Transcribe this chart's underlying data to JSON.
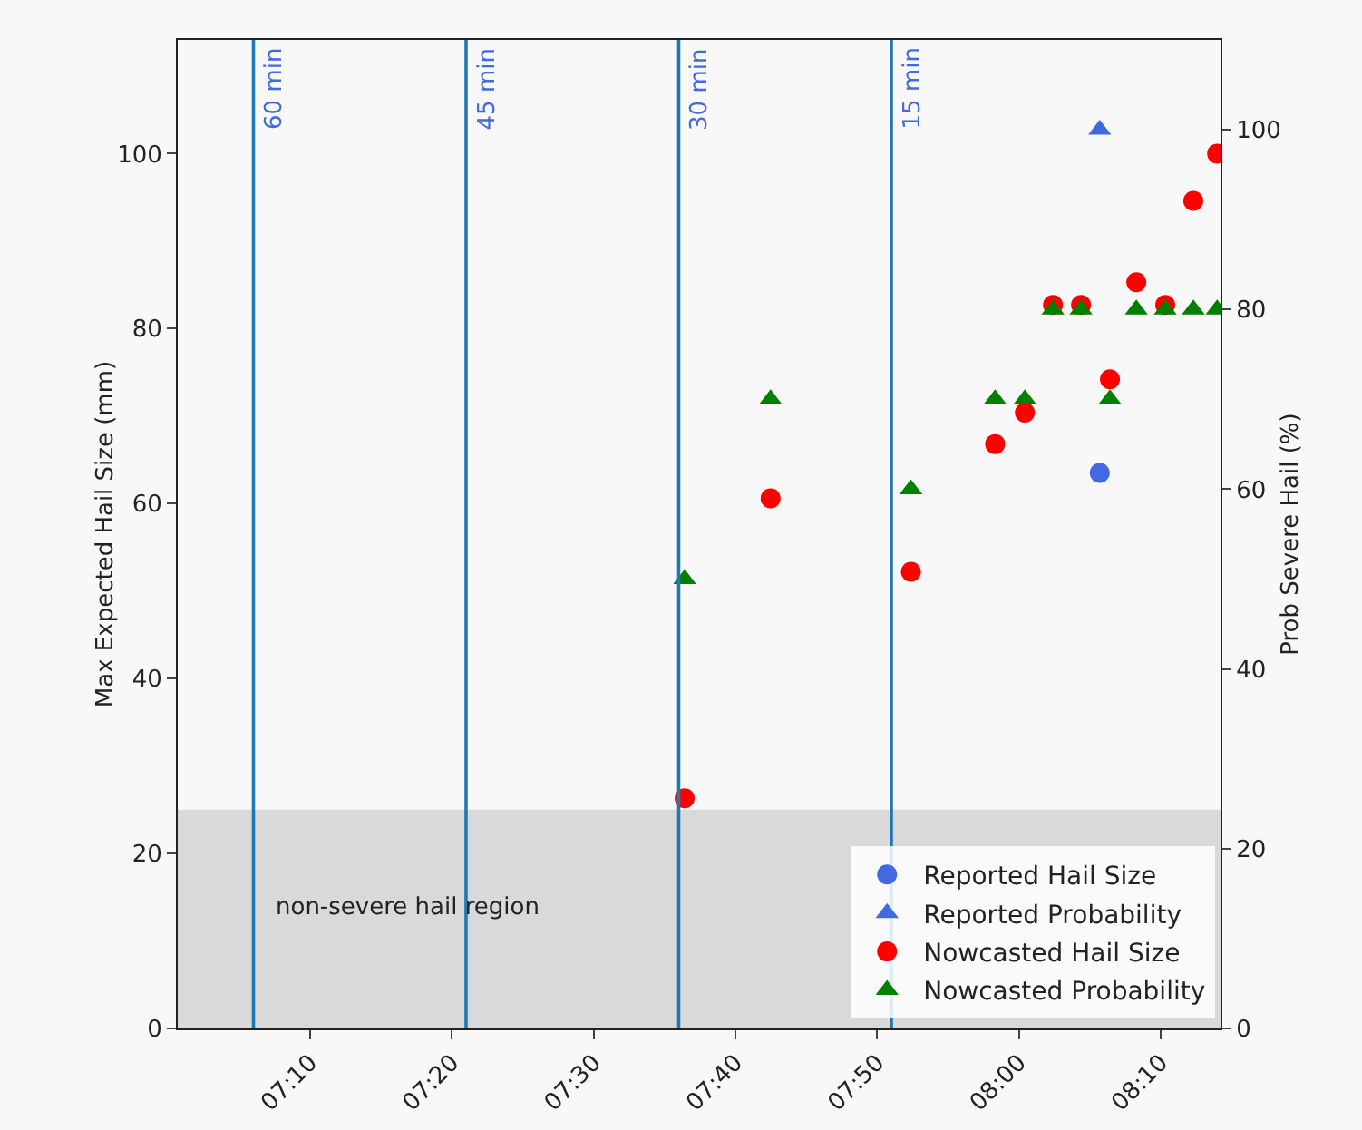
{
  "chart_data": {
    "type": "scatter",
    "ylabel": "Max Expected Hail Size (mm)",
    "y2label": "Prob Severe Hail (%)",
    "xlim": [
      7.011,
      8.237
    ],
    "xticks": [
      {
        "value": 7.1667,
        "label": "07:10"
      },
      {
        "value": 7.3333,
        "label": "07:20"
      },
      {
        "value": 7.5,
        "label": "07:30"
      },
      {
        "value": 7.6667,
        "label": "07:40"
      },
      {
        "value": 7.8333,
        "label": "07:50"
      },
      {
        "value": 8.0,
        "label": "08:00"
      },
      {
        "value": 8.1667,
        "label": "08:10"
      }
    ],
    "ylim": [
      0,
      113
    ],
    "yticks": [
      0,
      20,
      40,
      60,
      80,
      100
    ],
    "y2lim": [
      0,
      110
    ],
    "y2ticks": [
      0,
      20,
      40,
      60,
      80,
      100
    ],
    "series": [
      {
        "name": "Reported Hail Size",
        "marker": "circle",
        "color": "#4169e1",
        "x": [
          8.095
        ],
        "values": [
          63.5
        ]
      },
      {
        "name": "Reported Probability",
        "marker": "triangle",
        "color": "#4169e1",
        "axis": "y2",
        "x": [
          8.095
        ],
        "values": [
          100
        ]
      },
      {
        "name": "Nowcasted Hail Size",
        "marker": "circle",
        "color": "#ff0000",
        "x": [
          7.607,
          7.708,
          7.873,
          7.972,
          8.007,
          8.04,
          8.073,
          8.107,
          8.138,
          8.172,
          8.205,
          8.233
        ],
        "values": [
          26.3,
          60.6,
          52.2,
          66.8,
          70.4,
          82.7,
          82.7,
          74.2,
          85.3,
          82.7,
          94.6,
          100
        ]
      },
      {
        "name": "Nowcasted Probability",
        "marker": "triangle",
        "color": "#008000",
        "axis": "y2",
        "x": [
          7.607,
          7.708,
          7.873,
          7.972,
          8.007,
          8.04,
          8.073,
          8.107,
          8.138,
          8.172,
          8.205,
          8.233
        ],
        "values": [
          50,
          70,
          60,
          70,
          70,
          80,
          80,
          70,
          80,
          80,
          80,
          80
        ]
      }
    ],
    "ref_lines": [
      {
        "axis": "x",
        "value": 7.1,
        "label": "60 min",
        "color": "#1f77b4"
      },
      {
        "axis": "x",
        "value": 7.35,
        "label": "45 min",
        "color": "#1f77b4"
      },
      {
        "axis": "x",
        "value": 7.6,
        "label": "30 min",
        "color": "#1f77b4"
      },
      {
        "axis": "x",
        "value": 7.85,
        "label": "15 min",
        "color": "#1f77b4"
      }
    ],
    "bands": [
      {
        "axis": "y",
        "from": 0,
        "to": 25,
        "label": "non-severe hail region",
        "color": "#d9d9d9"
      }
    ],
    "legend": "bottom right",
    "grid": false
  }
}
